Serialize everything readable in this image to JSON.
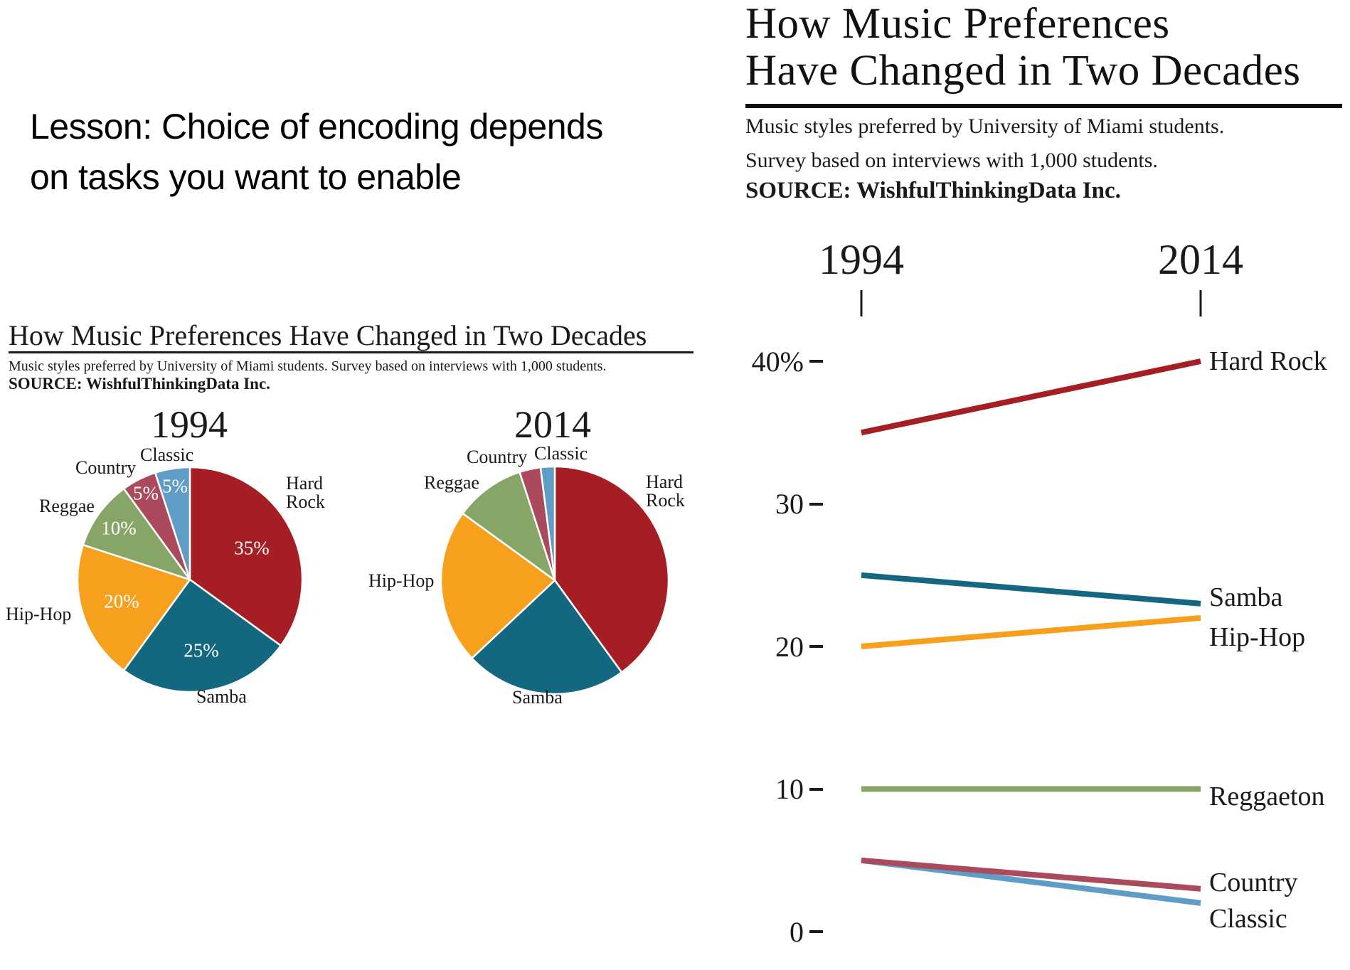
{
  "lesson": {
    "line1": "Lesson: Choice of encoding depends",
    "line2": "on tasks you want to enable"
  },
  "left_chart": {
    "title": "How Music Preferences Have Changed in Two Decades",
    "subtitle": "Music styles preferred by University of Miami students. Survey based on interviews with 1,000 students.",
    "source": "SOURCE: WishfulThinkingData Inc."
  },
  "right_chart": {
    "title_line1": "How Music Preferences",
    "title_line2": "Have Changed in Two Decades",
    "subtitle_line1": "Music styles preferred by University of Miami students.",
    "subtitle_line2": "Survey based on interviews with 1,000 students.",
    "source": "SOURCE: WishfulThinkingData Inc."
  },
  "colors": {
    "hard_rock": "#A51E24",
    "samba": "#13687F",
    "hip_hop": "#F6A01E",
    "reggae": "#86A566",
    "country": "#AA4A5C",
    "classic": "#5F9DC6",
    "ink": "#1a1a1a"
  },
  "chart_data": [
    {
      "type": "pie",
      "year": "1994",
      "slices": [
        {
          "label": "Hard Rock",
          "value": 35,
          "pct_label": "35%",
          "color": "#A51E24"
        },
        {
          "label": "Samba",
          "value": 25,
          "pct_label": "25%",
          "color": "#13687F"
        },
        {
          "label": "Hip-Hop",
          "value": 20,
          "pct_label": "20%",
          "color": "#F6A01E"
        },
        {
          "label": "Reggae",
          "value": 10,
          "pct_label": "10%",
          "color": "#86A566"
        },
        {
          "label": "Country",
          "value": 5,
          "pct_label": "5%",
          "color": "#AA4A5C"
        },
        {
          "label": "Classic",
          "value": 5,
          "pct_label": "5%",
          "color": "#5F9DC6"
        }
      ]
    },
    {
      "type": "pie",
      "year": "2014",
      "slices": [
        {
          "label": "Hard Rock",
          "value": 40,
          "pct_label": "",
          "color": "#A51E24"
        },
        {
          "label": "Samba",
          "value": 23,
          "pct_label": "",
          "color": "#13687F"
        },
        {
          "label": "Hip-Hop",
          "value": 22,
          "pct_label": "",
          "color": "#F6A01E"
        },
        {
          "label": "Reggae",
          "value": 10,
          "pct_label": "",
          "color": "#86A566"
        },
        {
          "label": "Country",
          "value": 3,
          "pct_label": "",
          "color": "#AA4A5C"
        },
        {
          "label": "Classic",
          "value": 2,
          "pct_label": "",
          "color": "#5F9DC6"
        }
      ]
    },
    {
      "type": "slopegraph",
      "columns": [
        "1994",
        "2014"
      ],
      "ylim": [
        0,
        42
      ],
      "yticks": [
        {
          "label": "40%",
          "value": 40
        },
        {
          "label": "30",
          "value": 30
        },
        {
          "label": "20",
          "value": 20
        },
        {
          "label": "10",
          "value": 10
        },
        {
          "label": "0",
          "value": 0
        }
      ],
      "series": [
        {
          "name": "Hard Rock",
          "values": [
            35,
            40
          ],
          "color": "#A51E24"
        },
        {
          "name": "Samba",
          "values": [
            25,
            23
          ],
          "color": "#13687F"
        },
        {
          "name": "Hip-Hop",
          "values": [
            20,
            22
          ],
          "color": "#F6A01E"
        },
        {
          "name": "Reggaeton",
          "values": [
            10,
            10
          ],
          "color": "#86A566"
        },
        {
          "name": "Country",
          "values": [
            5,
            3
          ],
          "color": "#AA4A5C"
        },
        {
          "name": "Classic",
          "values": [
            5,
            2
          ],
          "color": "#5F9DC6"
        }
      ]
    }
  ]
}
